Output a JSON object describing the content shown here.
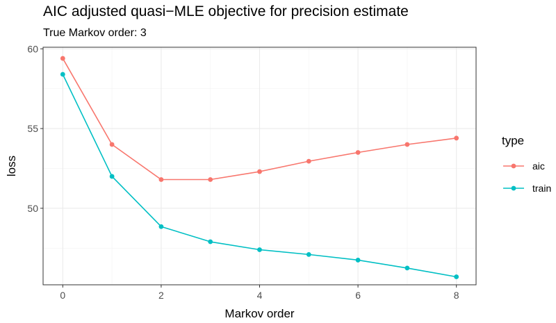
{
  "chart_data": {
    "type": "line",
    "title": "AIC adjusted quasi−MLE objective for precision estimate",
    "subtitle": "True Markov order: 3",
    "xlabel": "Markov order",
    "ylabel": "loss",
    "x": [
      0,
      1,
      2,
      3,
      4,
      5,
      6,
      7,
      8
    ],
    "xlim": [
      -0.4,
      8.4
    ],
    "ylim": [
      45.2,
      60.1
    ],
    "xticks": [
      0,
      2,
      4,
      6,
      8
    ],
    "xtick_labels": [
      "0",
      "2",
      "4",
      "6",
      "8"
    ],
    "yticks": [
      50,
      55,
      60
    ],
    "ytick_labels": [
      "50",
      "55",
      "60"
    ],
    "grid": true,
    "legend": {
      "title": "type",
      "placement": "right"
    },
    "series": [
      {
        "name": "aic",
        "color": "#F8766D",
        "values": [
          59.4,
          54.0,
          51.8,
          51.8,
          52.3,
          52.95,
          53.5,
          54.0,
          54.4
        ]
      },
      {
        "name": "train",
        "color": "#00BFC4",
        "values": [
          58.4,
          52.0,
          48.85,
          47.9,
          47.4,
          47.1,
          46.75,
          46.25,
          45.7
        ]
      }
    ]
  }
}
